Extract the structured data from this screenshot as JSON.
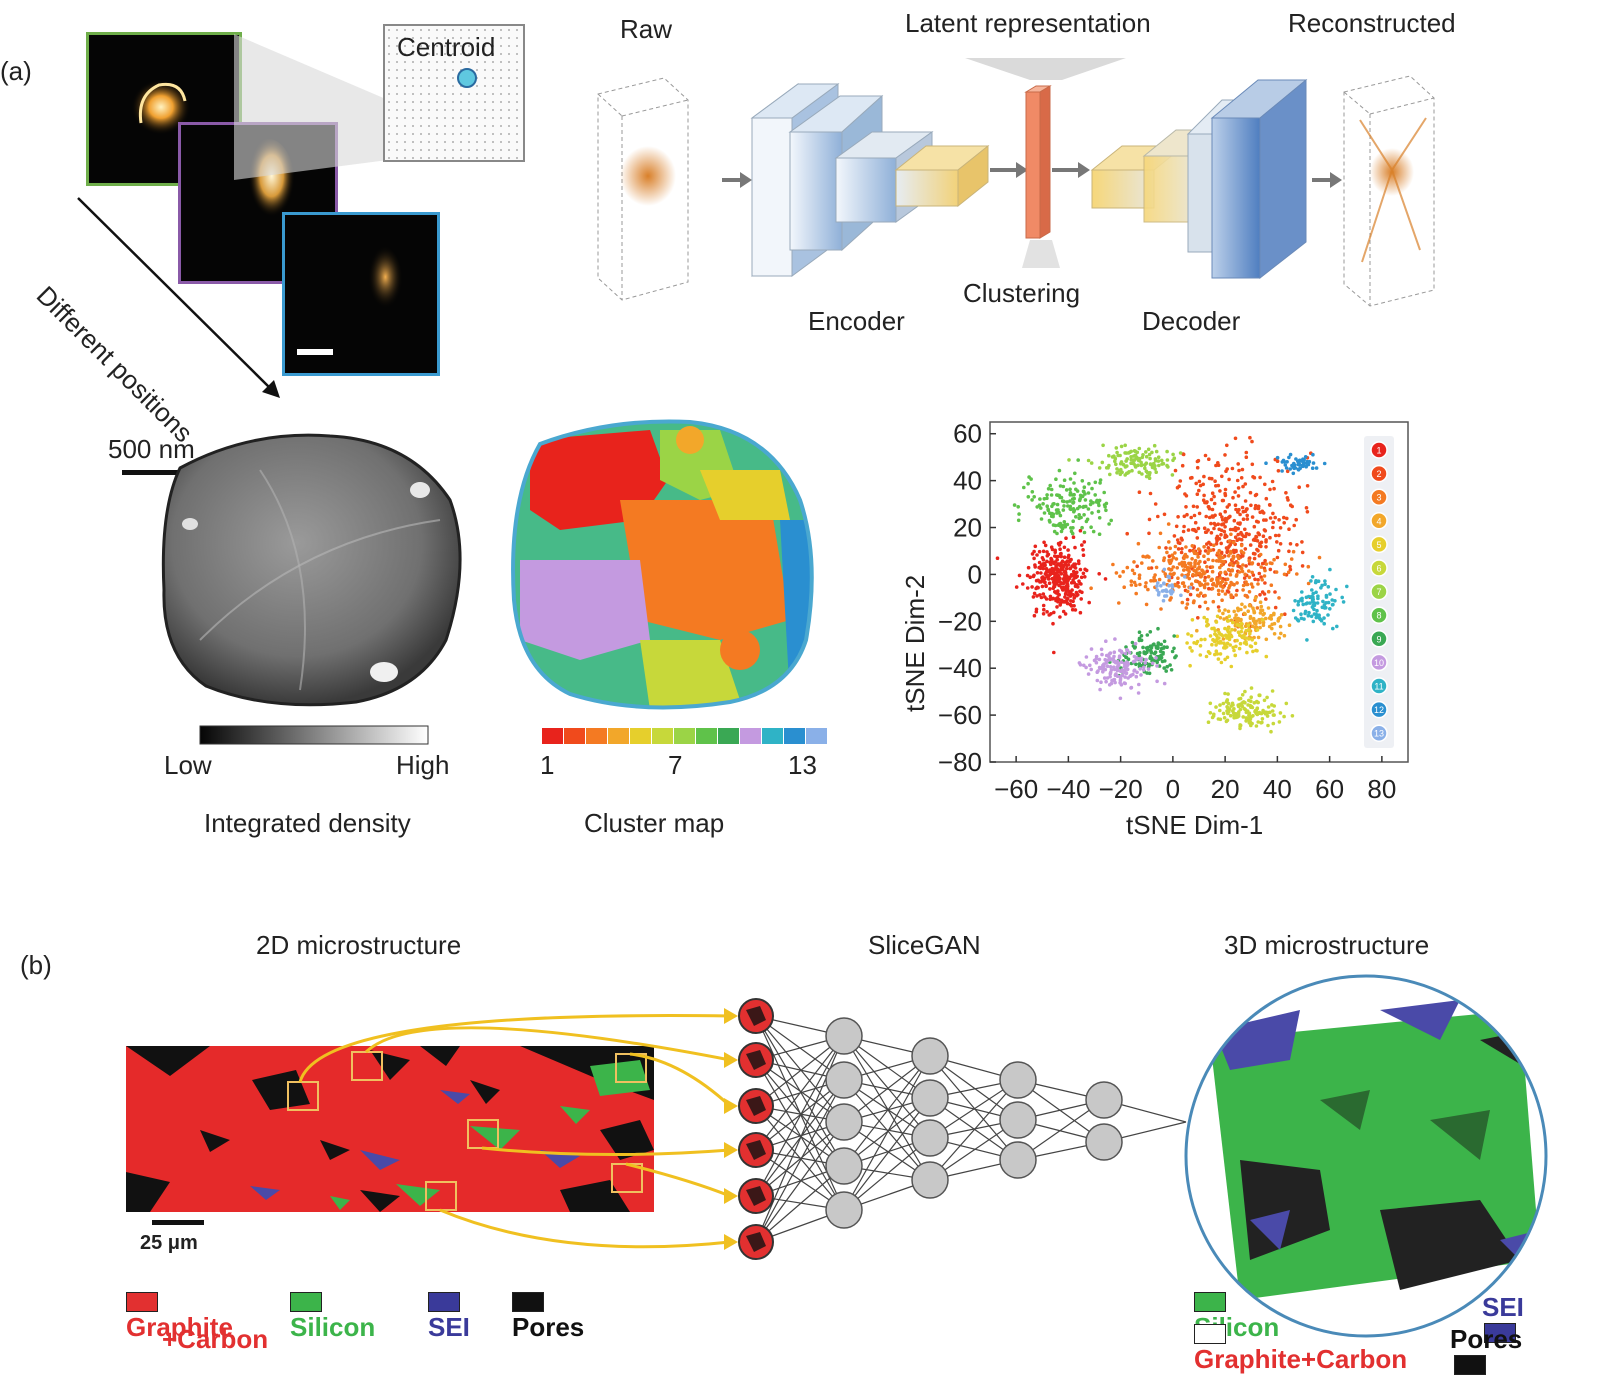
{
  "panel_a": {
    "label": "(a)",
    "centroid_label": "Centroid",
    "positions_label": "Different positions",
    "raw_label": "Raw",
    "latent_label": "Latent representation",
    "reconstructed_label": "Reconstructed",
    "encoder_label": "Encoder",
    "decoder_label": "Decoder",
    "clustering_label": "Clustering",
    "scalebar_label": "500 nm",
    "density_low": "Low",
    "density_high": "High",
    "density_caption": "Integrated density",
    "cluster_tick_1": "1",
    "cluster_tick_7": "7",
    "cluster_tick_13": "13",
    "cluster_caption": "Cluster map",
    "cluster_colors": [
      "#e8231c",
      "#f04a1c",
      "#f47a22",
      "#f2a72a",
      "#e6cf2c",
      "#c7d83a",
      "#9bd446",
      "#5fc24a",
      "#3aa854",
      "#c49ae0",
      "#2fb3c6",
      "#2a8fd0",
      "#8ab0e8"
    ]
  },
  "chart_data": {
    "type": "scatter",
    "xlabel": "tSNE Dim-1",
    "ylabel": "tSNE Dim-2",
    "xlim": [
      -70,
      90
    ],
    "ylim": [
      -80,
      65
    ],
    "x_ticks": [
      "−60",
      "−40",
      "−20",
      "0",
      "20",
      "40",
      "60",
      "80"
    ],
    "x_tick_values": [
      -60,
      -40,
      -20,
      0,
      20,
      40,
      60,
      80
    ],
    "y_ticks": [
      "60",
      "40",
      "20",
      "0",
      "−20",
      "−40",
      "−60",
      "−80"
    ],
    "y_tick_values": [
      60,
      40,
      20,
      0,
      -20,
      -40,
      -60,
      -80
    ],
    "legend_placement": "right",
    "series": [
      {
        "name": "1",
        "color": "#e8231c",
        "cx": -44,
        "cy": -2,
        "rx": 10,
        "ry": 13,
        "n": 320
      },
      {
        "name": "2",
        "color": "#f04a1c",
        "cx": 22,
        "cy": 20,
        "rx": 22,
        "ry": 28,
        "n": 420
      },
      {
        "name": "3",
        "color": "#f47a22",
        "cx": 12,
        "cy": 0,
        "rx": 26,
        "ry": 12,
        "n": 300
      },
      {
        "name": "4",
        "color": "#f2a72a",
        "cx": 30,
        "cy": -20,
        "rx": 12,
        "ry": 8,
        "n": 120
      },
      {
        "name": "5",
        "color": "#e6cf2c",
        "cx": 20,
        "cy": -28,
        "rx": 12,
        "ry": 8,
        "n": 120
      },
      {
        "name": "6",
        "color": "#c7d83a",
        "cx": 28,
        "cy": -58,
        "rx": 12,
        "ry": 7,
        "n": 140
      },
      {
        "name": "7",
        "color": "#9bd446",
        "cx": -15,
        "cy": 48,
        "rx": 14,
        "ry": 6,
        "n": 120
      },
      {
        "name": "8",
        "color": "#5fc24a",
        "cx": -40,
        "cy": 30,
        "rx": 14,
        "ry": 12,
        "n": 160
      },
      {
        "name": "9",
        "color": "#3aa854",
        "cx": -10,
        "cy": -35,
        "rx": 10,
        "ry": 8,
        "n": 110
      },
      {
        "name": "10",
        "color": "#c49ae0",
        "cx": -20,
        "cy": -40,
        "rx": 12,
        "ry": 8,
        "n": 150
      },
      {
        "name": "11",
        "color": "#2fb3c6",
        "cx": 55,
        "cy": -12,
        "rx": 8,
        "ry": 10,
        "n": 90
      },
      {
        "name": "12",
        "color": "#2a8fd0",
        "cx": 48,
        "cy": 47,
        "rx": 8,
        "ry": 3,
        "n": 50
      },
      {
        "name": "13",
        "color": "#8ab0e8",
        "cx": -2,
        "cy": -5,
        "rx": 5,
        "ry": 5,
        "n": 30
      }
    ]
  },
  "panel_b": {
    "label": "(b)",
    "title_2d": "2D microstructure",
    "title_gan": "SliceGAN",
    "title_3d": "3D microstructure",
    "scalebar_label": "25 μm",
    "legend_left": [
      {
        "label": "Graphite",
        "label2": "+Carbon",
        "color": "#e23030",
        "text_color": "#e23030"
      },
      {
        "label": "Silicon",
        "color": "#3cb44a",
        "text_color": "#3cb44a"
      },
      {
        "label": "SEI",
        "color": "#3a3a9a",
        "text_color": "#3a3a9a"
      },
      {
        "label": "Pores",
        "color": "#111111",
        "text_color": "#111111"
      }
    ],
    "legend_right": [
      {
        "label": "Silicon",
        "color": "#3cb44a",
        "text_color": "#3cb44a"
      },
      {
        "label": "SEI",
        "color": "#3a3a9a",
        "text_color": "#3a3a9a"
      },
      {
        "label": "Graphite+Carbon",
        "color": "#ffffff",
        "text_color": "#e23030"
      },
      {
        "label": "Pores",
        "color": "#111111",
        "text_color": "#111111"
      }
    ]
  }
}
